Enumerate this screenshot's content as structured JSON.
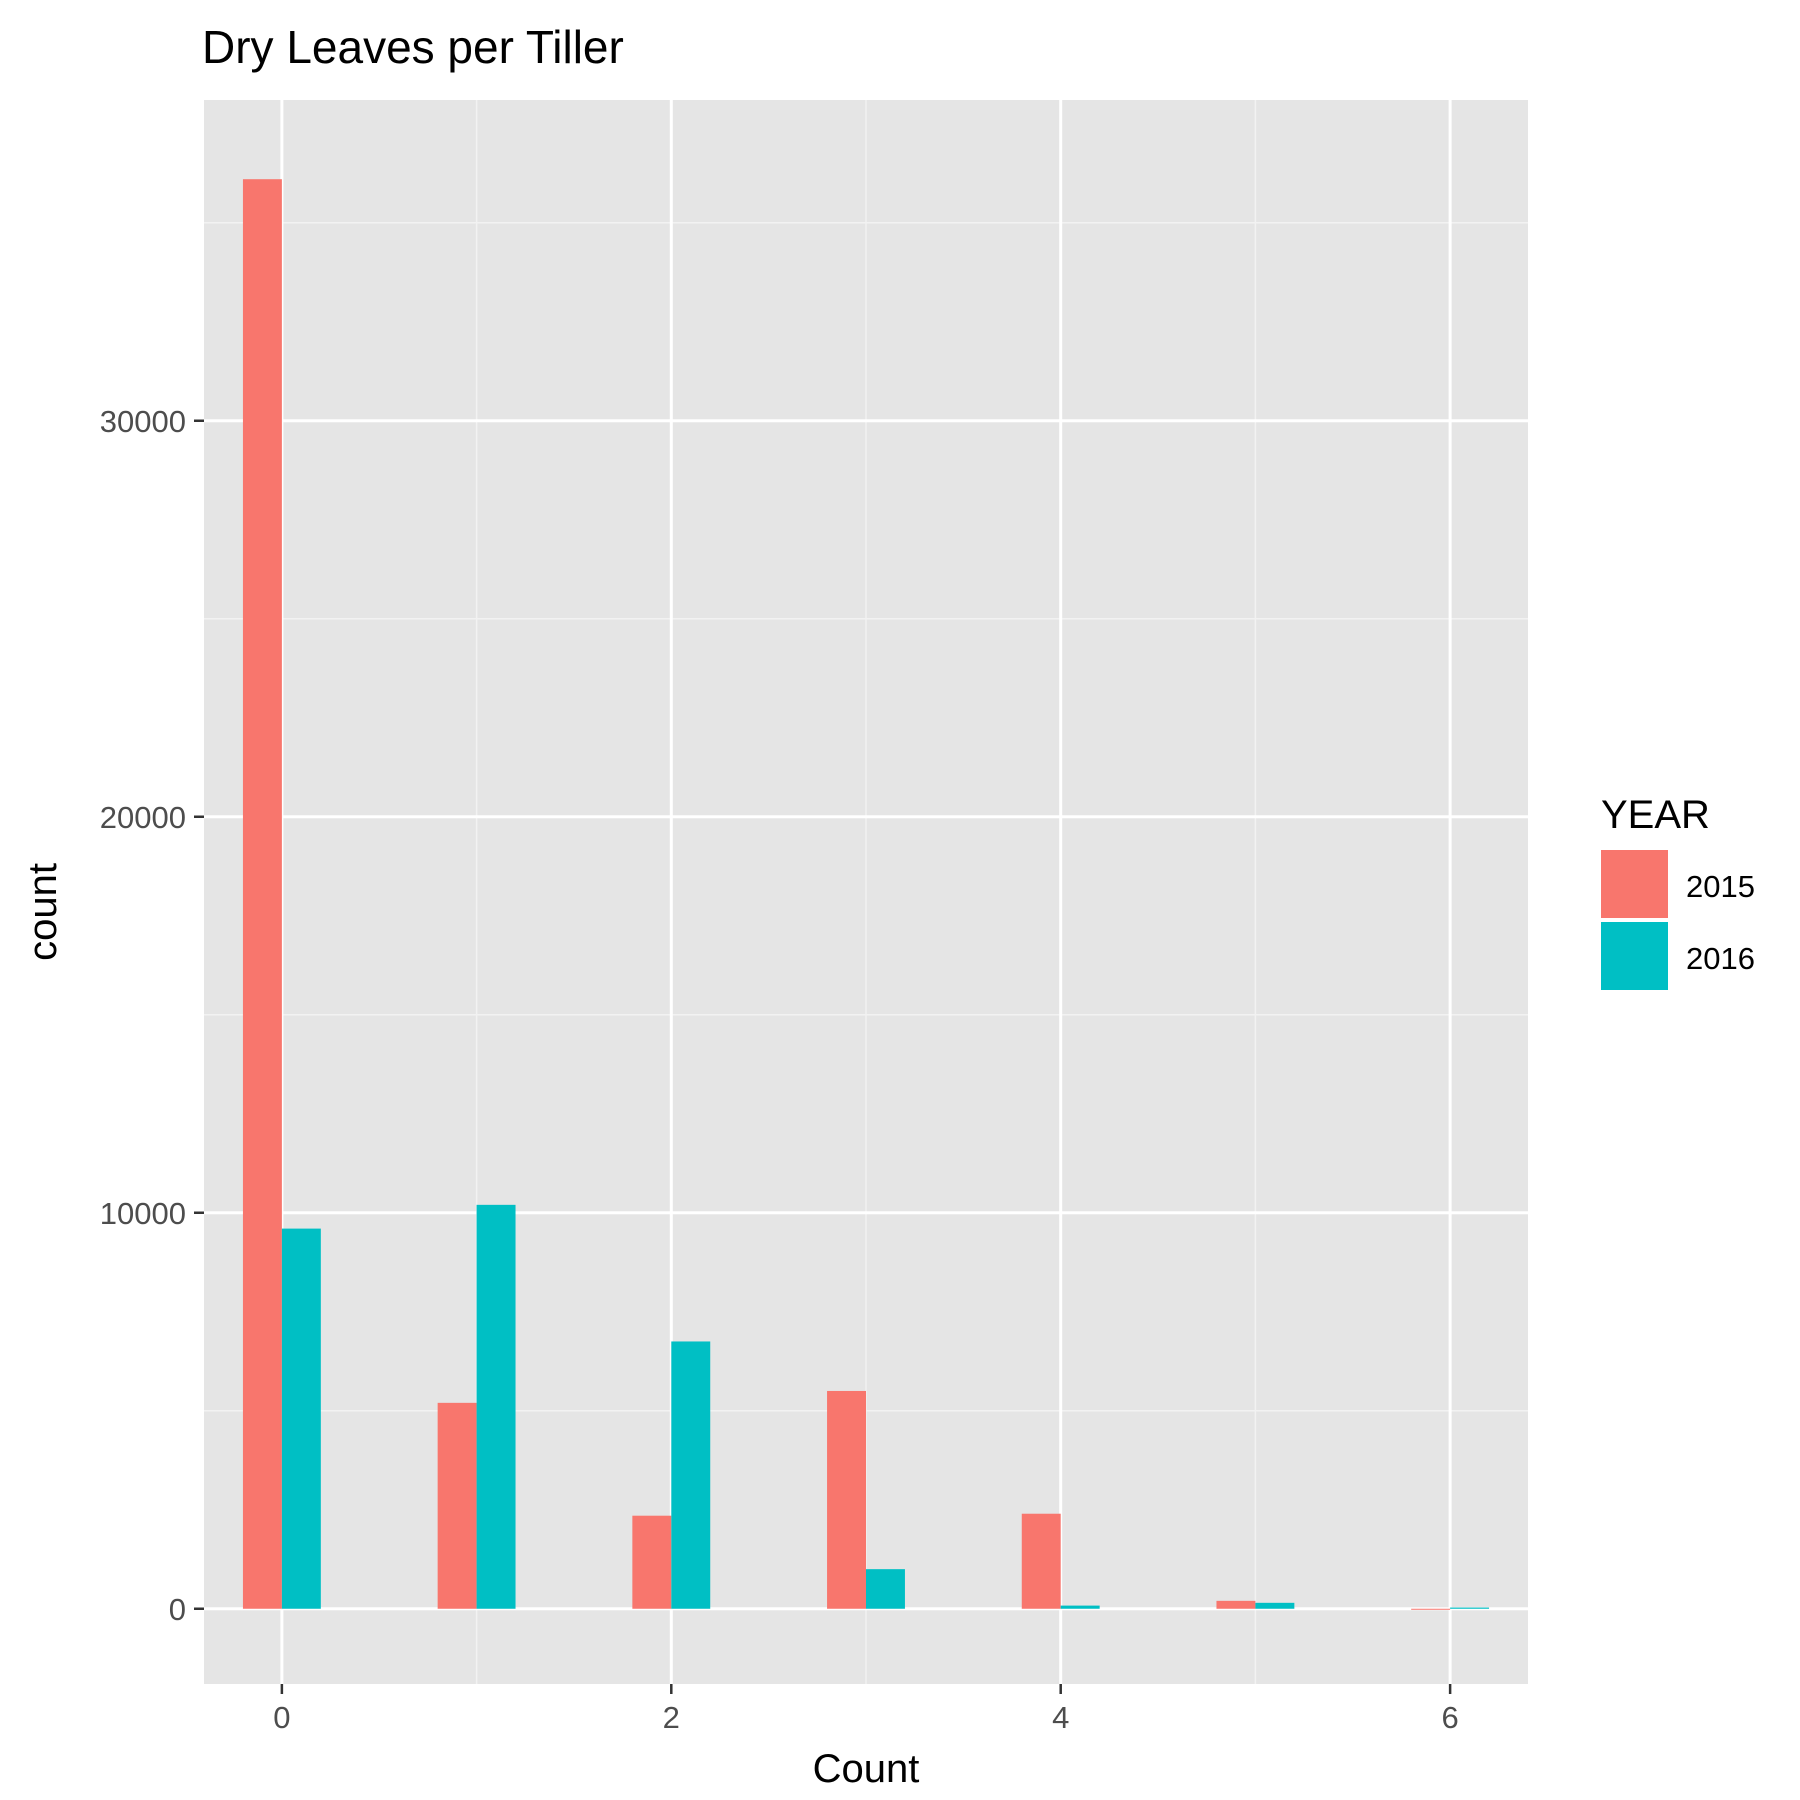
{
  "chart_data": {
    "type": "bar",
    "title": "Dry Leaves per Tiller",
    "xlabel": "Count",
    "ylabel": "count",
    "x_ticks": [
      0,
      2,
      4,
      6
    ],
    "y_ticks": [
      0,
      10000,
      20000,
      30000
    ],
    "x_tick_labels": [
      "0",
      "2",
      "4",
      "6"
    ],
    "y_tick_labels": [
      "0",
      "10000",
      "20000",
      "30000"
    ],
    "xlim": [
      -0.4,
      6.4
    ],
    "ylim": [
      -1900,
      38100
    ],
    "bar_width": 0.2,
    "grid": true,
    "legend": {
      "title": "YEAR",
      "position": "right"
    },
    "series": [
      {
        "name": "2015",
        "color": "#F8766D",
        "x": [
          0,
          1,
          2,
          3,
          4,
          5,
          6
        ],
        "values": [
          36100,
          5200,
          2350,
          5500,
          2400,
          200,
          0
        ]
      },
      {
        "name": "2016",
        "color": "#00BFC4",
        "x": [
          0,
          1,
          2,
          3,
          4,
          5,
          6
        ],
        "values": [
          9600,
          10200,
          6750,
          1000,
          80,
          150,
          30
        ]
      }
    ],
    "colors": {
      "panel_background": "#E5E5E5",
      "grid_major": "#FFFFFF",
      "grid_minor": "#F2F2F2"
    }
  }
}
